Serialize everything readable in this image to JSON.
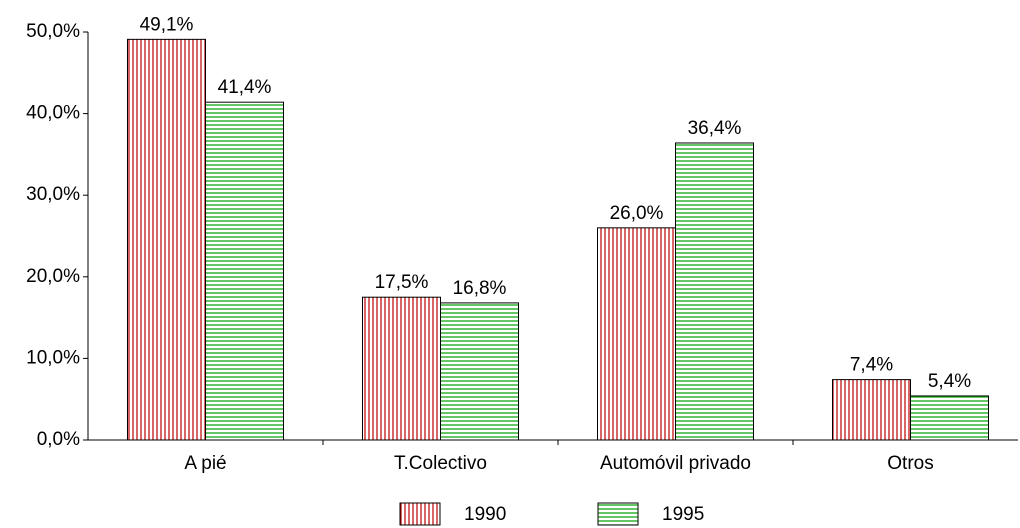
{
  "chart_data": {
    "type": "bar",
    "categories": [
      "A pié",
      "T.Colectivo",
      "Automóvil privado",
      "Otros"
    ],
    "series": [
      {
        "name": "1990",
        "color": "#c00000",
        "values": [
          49.1,
          17.5,
          26.0,
          7.4
        ],
        "value_labels": [
          "49,1%",
          "17,5%",
          "26,0%",
          "7,4%"
        ]
      },
      {
        "name": "1995",
        "color": "#00a000",
        "values": [
          41.4,
          16.8,
          36.4,
          5.4
        ],
        "value_labels": [
          "41,4%",
          "16,8%",
          "36,4%",
          "5,4%"
        ]
      }
    ],
    "ylim": [
      0,
      50
    ],
    "yticks": [
      {
        "value": 0,
        "label": "0,0%"
      },
      {
        "value": 10,
        "label": "10,0%"
      },
      {
        "value": 20,
        "label": "20,0%"
      },
      {
        "value": 30,
        "label": "30,0%"
      },
      {
        "value": 40,
        "label": "40,0%"
      },
      {
        "value": 50,
        "label": "50,0%"
      }
    ],
    "grid": false,
    "legend": "bottom"
  }
}
